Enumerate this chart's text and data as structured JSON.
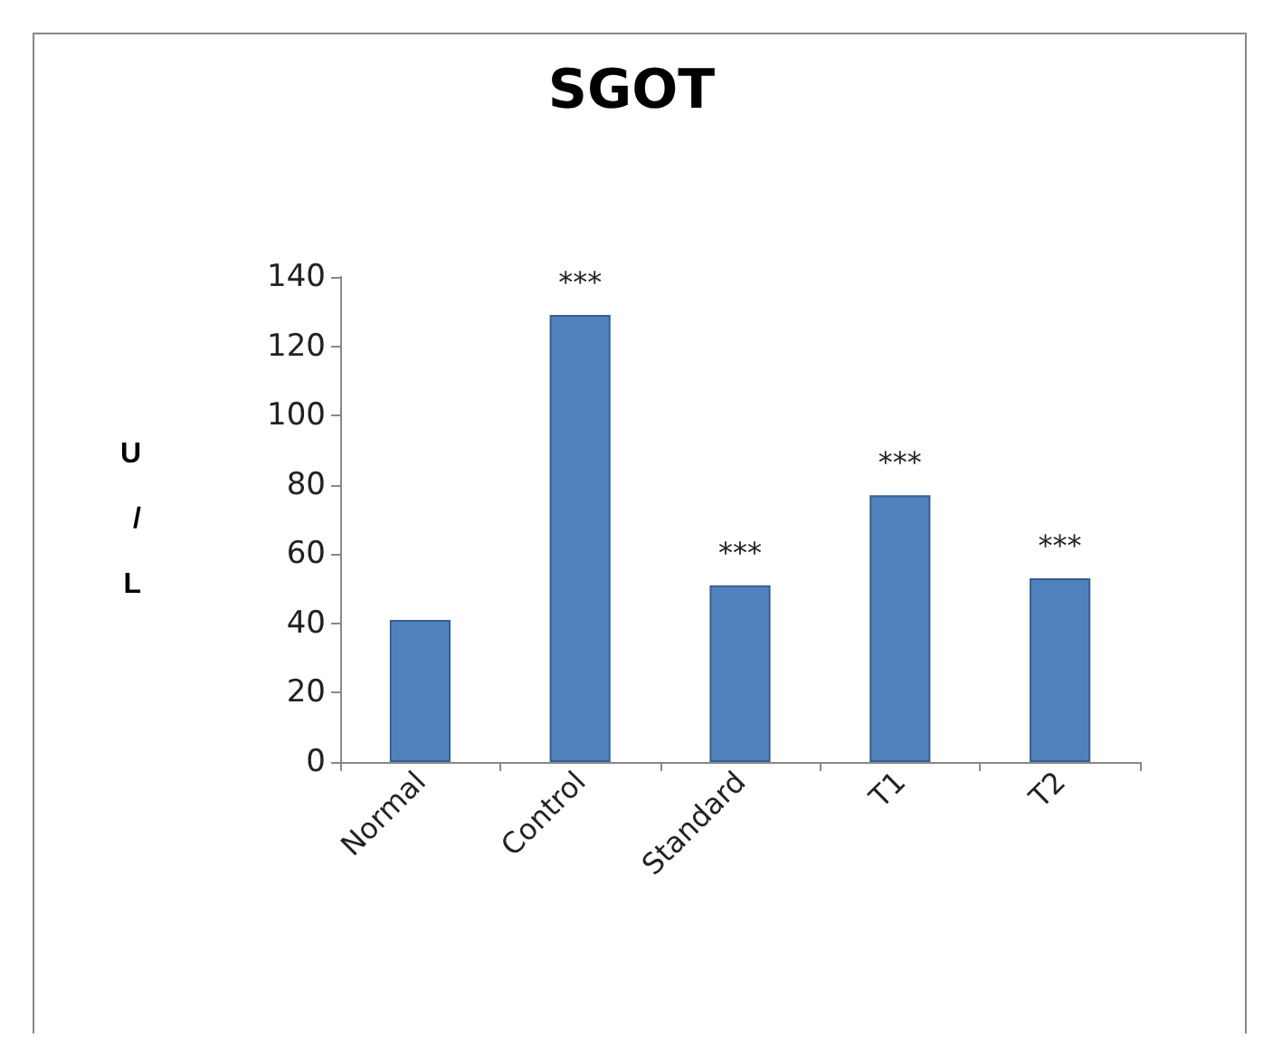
{
  "chart_data": {
    "type": "bar",
    "title": "SGOT",
    "ylabel": "U / L",
    "categories": [
      "Normal",
      "Control",
      "Standard",
      "T1",
      "T2"
    ],
    "values": [
      41,
      129,
      51,
      77,
      53
    ],
    "color": "#4f81bd",
    "ylim": [
      0,
      140
    ],
    "yticks": [
      0,
      20,
      40,
      60,
      80,
      100,
      120,
      140
    ],
    "grid": false,
    "annotations": [
      {
        "text": "***",
        "x": "Control",
        "y": 129
      },
      {
        "text": "***",
        "x": "Standard",
        "y": 51
      },
      {
        "text": "***",
        "x": "T1",
        "y": 77
      },
      {
        "text": "***",
        "x": "T2",
        "y": 53
      }
    ]
  }
}
